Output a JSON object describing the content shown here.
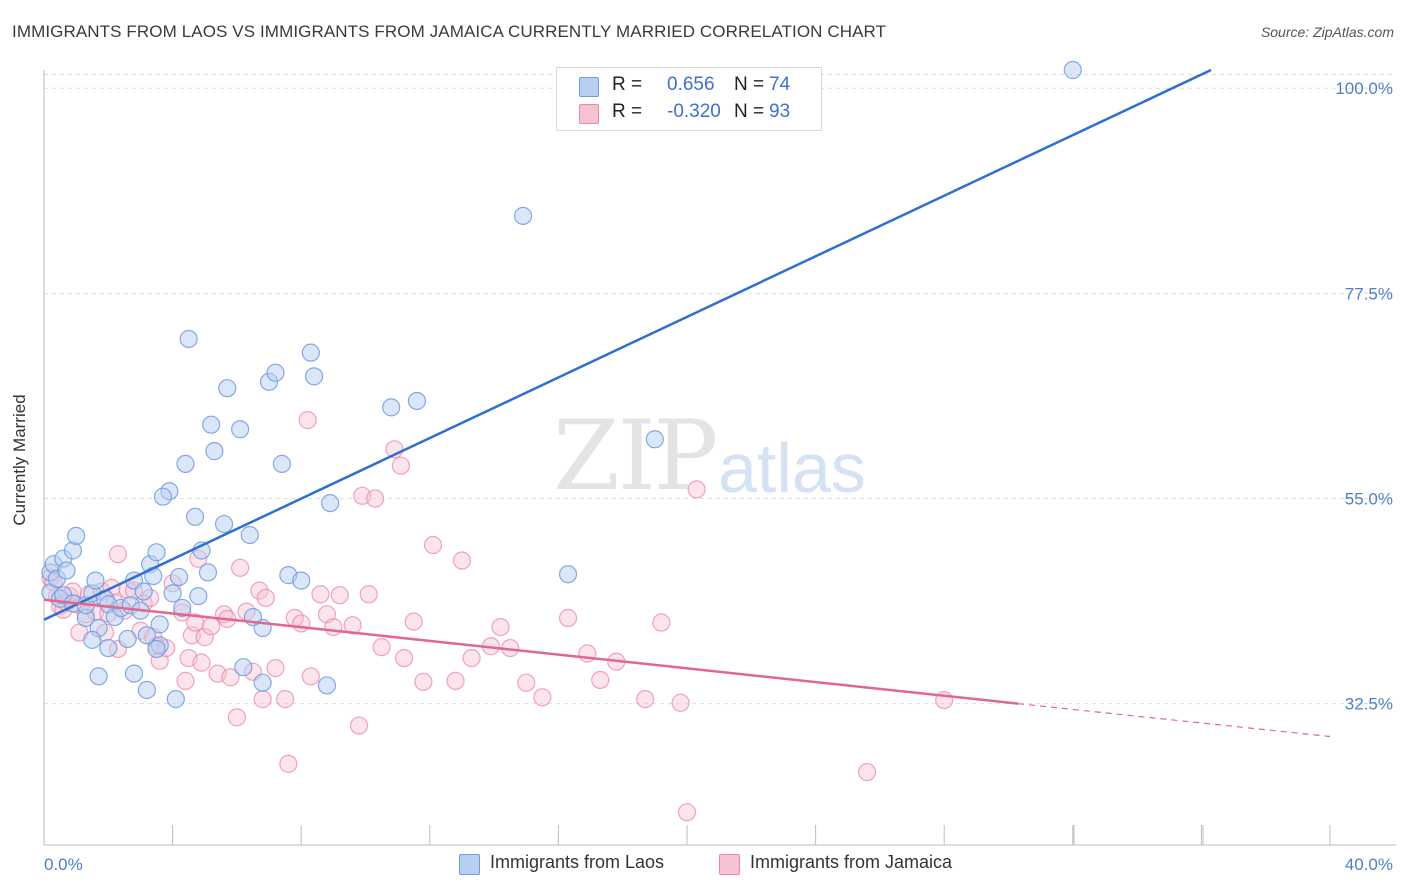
{
  "title": "IMMIGRANTS FROM LAOS VS IMMIGRANTS FROM JAMAICA CURRENTLY MARRIED CORRELATION CHART",
  "source": "Source: ZipAtlas.com",
  "watermark": {
    "zip": "ZIP",
    "atlas": "atlas"
  },
  "colors": {
    "laos": "#6f9be0",
    "laos_fill": "#b7cff2",
    "jamaica": "#ee86a8",
    "jamaica_fill": "#f6c3d4",
    "blue_text": "#3f6fd1",
    "laos_line": "#2f6fcf",
    "jamaica_line": "#e2678f"
  },
  "legend": {
    "laos": {
      "r_label": "R = ",
      "r_value": "0.656",
      "n_label": "N = ",
      "n_value": "74"
    },
    "jamaica": {
      "r_label": "R = ",
      "r_value": "-0.320",
      "n_label": "N = ",
      "n_value": "93"
    }
  },
  "chart_data": {
    "type": "scatter",
    "title": "IMMIGRANTS FROM LAOS VS IMMIGRANTS FROM JAMAICA CURRENTLY MARRIED CORRELATION CHART",
    "xlabel": "",
    "ylabel": "Currently Married",
    "xlim": [
      0,
      40
    ],
    "ylim": [
      17,
      102
    ],
    "x_tick_labels": [
      "0.0%",
      "40.0%"
    ],
    "y_ticks": [
      32.5,
      55.0,
      77.5,
      100.0
    ],
    "y_tick_labels": [
      "32.5%",
      "55.0%",
      "77.5%",
      "100.0%"
    ],
    "grid": true,
    "legend_position": "bottom",
    "series": [
      {
        "name": "Immigrants from Laos",
        "r": 0.656,
        "n": 74,
        "trend": {
          "x": [
            0,
            36.3
          ],
          "y": [
            41.7,
            102
          ]
        },
        "points": [
          [
            0.2,
            46.9
          ],
          [
            0.3,
            47.8
          ],
          [
            0.2,
            44.7
          ],
          [
            0.4,
            46.2
          ],
          [
            0.5,
            44.0
          ],
          [
            0.6,
            48.4
          ],
          [
            0.7,
            47.1
          ],
          [
            0.9,
            49.3
          ],
          [
            1.0,
            50.9
          ],
          [
            0.6,
            44.4
          ],
          [
            0.9,
            43.5
          ],
          [
            1.3,
            41.9
          ],
          [
            1.3,
            43.3
          ],
          [
            1.5,
            44.6
          ],
          [
            1.6,
            46.0
          ],
          [
            1.7,
            40.8
          ],
          [
            1.9,
            44.0
          ],
          [
            2.0,
            43.4
          ],
          [
            2.2,
            42.0
          ],
          [
            2.4,
            43.0
          ],
          [
            2.6,
            39.6
          ],
          [
            2.7,
            43.3
          ],
          [
            2.8,
            46.0
          ],
          [
            3.0,
            42.7
          ],
          [
            3.1,
            44.8
          ],
          [
            3.2,
            40.0
          ],
          [
            3.3,
            47.8
          ],
          [
            3.4,
            46.5
          ],
          [
            3.5,
            49.1
          ],
          [
            3.6,
            41.2
          ],
          [
            3.6,
            38.9
          ],
          [
            3.9,
            55.8
          ],
          [
            3.7,
            55.2
          ],
          [
            4.0,
            44.6
          ],
          [
            4.2,
            46.4
          ],
          [
            4.3,
            43.0
          ],
          [
            4.4,
            58.8
          ],
          [
            4.5,
            72.5
          ],
          [
            4.7,
            53.0
          ],
          [
            4.8,
            44.3
          ],
          [
            4.9,
            49.3
          ],
          [
            5.1,
            46.9
          ],
          [
            5.2,
            63.1
          ],
          [
            5.3,
            60.2
          ],
          [
            5.6,
            52.2
          ],
          [
            5.7,
            67.1
          ],
          [
            6.1,
            62.6
          ],
          [
            6.4,
            51.0
          ],
          [
            6.8,
            40.8
          ],
          [
            7.0,
            67.8
          ],
          [
            7.2,
            68.8
          ],
          [
            7.4,
            58.8
          ],
          [
            7.6,
            46.6
          ],
          [
            8.0,
            46.0
          ],
          [
            8.3,
            71.0
          ],
          [
            8.4,
            68.4
          ],
          [
            8.9,
            54.5
          ],
          [
            10.8,
            65.0
          ],
          [
            11.6,
            65.7
          ],
          [
            14.9,
            86.0
          ],
          [
            16.3,
            46.7
          ],
          [
            19.0,
            61.5
          ],
          [
            32.0,
            102.0
          ],
          [
            3.2,
            34.0
          ],
          [
            1.7,
            35.5
          ],
          [
            2.8,
            35.8
          ],
          [
            4.1,
            33.0
          ],
          [
            6.2,
            36.5
          ],
          [
            6.8,
            34.8
          ],
          [
            8.8,
            34.5
          ],
          [
            2.0,
            38.6
          ],
          [
            3.5,
            38.5
          ],
          [
            6.5,
            42.0
          ],
          [
            1.5,
            39.5
          ]
        ]
      },
      {
        "name": "Immigrants from Jamaica",
        "r": -0.32,
        "n": 93,
        "trend": {
          "x": [
            0,
            30.3
          ],
          "y": [
            43.9,
            32.5
          ],
          "dashed_to": {
            "x": 40,
            "y": 28.9
          }
        },
        "points": [
          [
            0.2,
            46.3
          ],
          [
            0.3,
            45.8
          ],
          [
            0.4,
            44.3
          ],
          [
            0.5,
            43.2
          ],
          [
            0.6,
            42.8
          ],
          [
            0.7,
            43.6
          ],
          [
            0.8,
            44.3
          ],
          [
            0.9,
            44.8
          ],
          [
            1.0,
            43.4
          ],
          [
            1.1,
            40.3
          ],
          [
            1.3,
            42.3
          ],
          [
            1.4,
            44.5
          ],
          [
            1.6,
            42.6
          ],
          [
            1.8,
            44.8
          ],
          [
            1.9,
            40.3
          ],
          [
            2.0,
            42.4
          ],
          [
            2.1,
            45.2
          ],
          [
            2.2,
            43.6
          ],
          [
            2.3,
            48.9
          ],
          [
            2.5,
            42.7
          ],
          [
            2.6,
            45.0
          ],
          [
            2.8,
            44.9
          ],
          [
            3.0,
            40.5
          ],
          [
            3.1,
            43.5
          ],
          [
            3.3,
            44.1
          ],
          [
            3.4,
            39.8
          ],
          [
            3.5,
            38.8
          ],
          [
            3.6,
            37.2
          ],
          [
            3.8,
            38.6
          ],
          [
            4.0,
            45.7
          ],
          [
            4.3,
            42.5
          ],
          [
            4.4,
            35.0
          ],
          [
            4.5,
            37.5
          ],
          [
            4.6,
            40.0
          ],
          [
            4.7,
            41.4
          ],
          [
            4.8,
            48.4
          ],
          [
            5.0,
            39.8
          ],
          [
            5.2,
            41.0
          ],
          [
            5.4,
            35.8
          ],
          [
            5.6,
            42.3
          ],
          [
            5.8,
            35.4
          ],
          [
            6.0,
            31.0
          ],
          [
            6.1,
            47.4
          ],
          [
            6.3,
            42.6
          ],
          [
            6.5,
            36.0
          ],
          [
            6.7,
            44.9
          ],
          [
            6.9,
            44.1
          ],
          [
            7.2,
            36.4
          ],
          [
            7.5,
            33.0
          ],
          [
            7.6,
            25.9
          ],
          [
            7.8,
            41.9
          ],
          [
            8.0,
            41.3
          ],
          [
            8.2,
            63.6
          ],
          [
            8.3,
            35.5
          ],
          [
            8.6,
            44.5
          ],
          [
            8.8,
            42.3
          ],
          [
            9.0,
            40.9
          ],
          [
            9.2,
            44.4
          ],
          [
            9.6,
            41.1
          ],
          [
            9.8,
            30.1
          ],
          [
            9.9,
            55.3
          ],
          [
            10.1,
            44.5
          ],
          [
            10.3,
            55.0
          ],
          [
            10.5,
            38.7
          ],
          [
            10.9,
            60.4
          ],
          [
            11.1,
            58.6
          ],
          [
            11.5,
            41.5
          ],
          [
            11.8,
            34.9
          ],
          [
            12.1,
            49.9
          ],
          [
            12.8,
            35.0
          ],
          [
            13.0,
            48.2
          ],
          [
            13.3,
            37.5
          ],
          [
            13.9,
            38.8
          ],
          [
            14.2,
            40.9
          ],
          [
            14.5,
            38.6
          ],
          [
            15.0,
            34.8
          ],
          [
            15.5,
            33.2
          ],
          [
            16.3,
            41.9
          ],
          [
            16.9,
            38.0
          ],
          [
            17.3,
            35.1
          ],
          [
            17.8,
            37.1
          ],
          [
            18.7,
            33.0
          ],
          [
            19.2,
            41.4
          ],
          [
            19.8,
            32.6
          ],
          [
            20.3,
            56.0
          ],
          [
            20.0,
            20.6
          ],
          [
            25.6,
            25.0
          ],
          [
            28.0,
            32.9
          ],
          [
            2.3,
            38.5
          ],
          [
            4.9,
            37.0
          ],
          [
            6.8,
            33.0
          ],
          [
            11.2,
            37.5
          ],
          [
            5.7,
            41.8
          ]
        ]
      }
    ]
  },
  "legend_bottom": [
    {
      "label": "Immigrants from Laos"
    },
    {
      "label": "Immigrants from Jamaica"
    }
  ]
}
